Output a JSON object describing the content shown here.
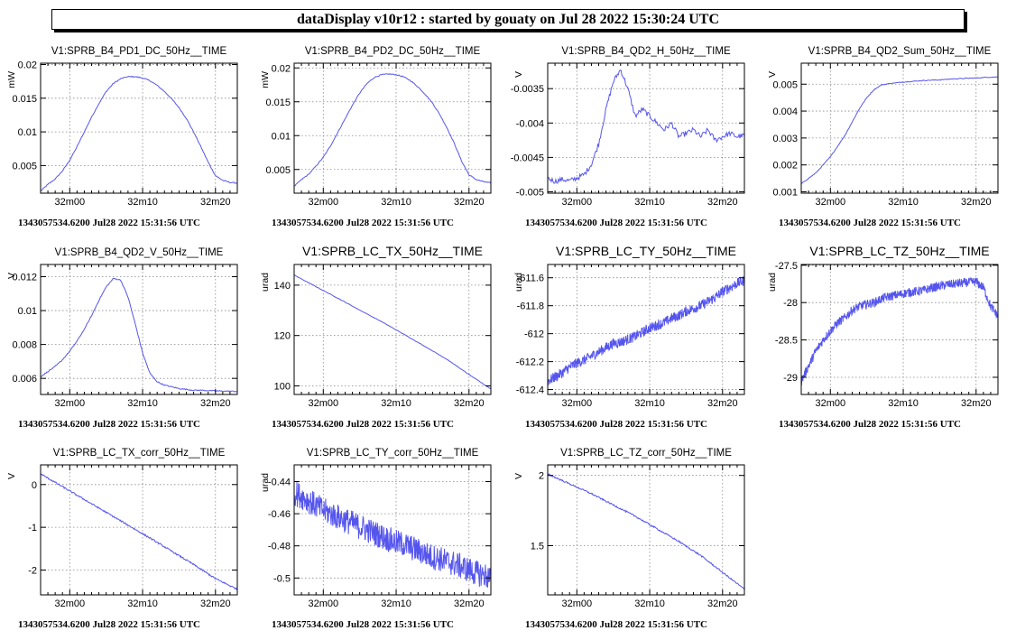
{
  "header": {
    "title": "dataDisplay v10r12 : started by gouaty on Jul 28 2022 15:30:24 UTC"
  },
  "style": {
    "line_color": "#5555ee",
    "grid_color": "#888888",
    "frame_color": "#000000"
  },
  "chart_data": [
    {
      "type": "line",
      "title": "V1:SPRB_B4_PD1_DC_50Hz__TIME",
      "ylabel": "mW",
      "ylim": [
        0.0009,
        0.0202
      ],
      "yticks": [
        0.005,
        0.01,
        0.015,
        0.02
      ],
      "ytick_labels": [
        "0.005",
        "0.01",
        "0.015",
        "0.02"
      ],
      "xlim": [
        0,
        27
      ],
      "xticks": [
        4,
        14,
        24
      ],
      "xtick_labels": [
        "32m00",
        "32m10",
        "32m20"
      ],
      "grid": true,
      "x": [
        0,
        1,
        2,
        3,
        4,
        5,
        6,
        7,
        8,
        9,
        10,
        11,
        12,
        13,
        14,
        15,
        16,
        17,
        18,
        19,
        20,
        21,
        22,
        23,
        24,
        25,
        26,
        27
      ],
      "series": [
        {
          "values": [
            0.0012,
            0.0022,
            0.003,
            0.0042,
            0.0058,
            0.0078,
            0.01,
            0.0122,
            0.0142,
            0.016,
            0.0172,
            0.0179,
            0.0182,
            0.0182,
            0.018,
            0.0176,
            0.0169,
            0.016,
            0.0149,
            0.0136,
            0.012,
            0.01,
            0.0078,
            0.0055,
            0.0035,
            0.0028,
            0.0025,
            0.0024
          ]
        }
      ],
      "footer": "1343057534.6200 Jul28 2022 15:31:56 UTC"
    },
    {
      "type": "line",
      "title": "V1:SPRB_B4_PD2_DC_50Hz__TIME",
      "ylabel": "mW",
      "ylim": [
        0.0015,
        0.0207
      ],
      "yticks": [
        0.005,
        0.01,
        0.015,
        0.02
      ],
      "ytick_labels": [
        "0.005",
        "0.01",
        "0.015",
        "0.02"
      ],
      "xlim": [
        0,
        27
      ],
      "xticks": [
        4,
        14,
        24
      ],
      "xtick_labels": [
        "32m00",
        "32m10",
        "32m20"
      ],
      "grid": true,
      "x": [
        0,
        1,
        2,
        3,
        4,
        5,
        6,
        7,
        8,
        9,
        10,
        11,
        12,
        13,
        14,
        15,
        16,
        17,
        18,
        19,
        20,
        21,
        22,
        23,
        24,
        25,
        26,
        27
      ],
      "series": [
        {
          "values": [
            0.0025,
            0.0035,
            0.0043,
            0.0055,
            0.0068,
            0.0085,
            0.0105,
            0.0125,
            0.0145,
            0.0163,
            0.0177,
            0.0186,
            0.019,
            0.0191,
            0.019,
            0.0187,
            0.0181,
            0.0172,
            0.0161,
            0.0148,
            0.0131,
            0.0111,
            0.0088,
            0.0062,
            0.0042,
            0.0035,
            0.0032,
            0.003
          ]
        }
      ],
      "footer": "1343057534.6200 Jul28 2022 15:31:56 UTC"
    },
    {
      "type": "line",
      "title": "V1:SPRB_B4_QD2_H_50Hz__TIME",
      "ylabel": "V",
      "ylim": [
        -0.00502,
        -0.00313
      ],
      "yticks": [
        -0.005,
        -0.0045,
        -0.004,
        -0.0035
      ],
      "ytick_labels": [
        "-0.005",
        "-0.0045",
        "-0.004",
        "-0.0035"
      ],
      "xlim": [
        0,
        27
      ],
      "xticks": [
        4,
        14,
        24
      ],
      "xtick_labels": [
        "32m00",
        "32m10",
        "32m20"
      ],
      "grid": true,
      "x": [
        0,
        1,
        2,
        3,
        4,
        5,
        6,
        7,
        8,
        9,
        10,
        11,
        12,
        13,
        14,
        15,
        16,
        17,
        18,
        19,
        20,
        21,
        22,
        23,
        24,
        25,
        26,
        27
      ],
      "series": [
        {
          "values": [
            -0.0048,
            -0.00485,
            -0.00482,
            -0.00484,
            -0.0048,
            -0.00475,
            -0.0046,
            -0.0043,
            -0.0038,
            -0.0034,
            -0.00322,
            -0.0035,
            -0.0039,
            -0.0038,
            -0.0039,
            -0.004,
            -0.0041,
            -0.004,
            -0.0042,
            -0.00415,
            -0.0041,
            -0.0042,
            -0.0041,
            -0.00425,
            -0.0042,
            -0.00415,
            -0.0042,
            -0.00418
          ]
        }
      ],
      "footer": "1343057534.6200 Jul28 2022 15:31:56 UTC"
    },
    {
      "type": "line",
      "title": "V1:SPRB_B4_QD2_Sum_50Hz__TIME",
      "ylabel": "V",
      "ylim": [
        0.00095,
        0.00578
      ],
      "yticks": [
        0.001,
        0.002,
        0.003,
        0.004,
        0.005
      ],
      "ytick_labels": [
        "0.001",
        "0.002",
        "0.003",
        "0.004",
        "0.005"
      ],
      "xlim": [
        0,
        27
      ],
      "xticks": [
        4,
        14,
        24
      ],
      "xtick_labels": [
        "32m00",
        "32m10",
        "32m20"
      ],
      "grid": true,
      "x": [
        0,
        1,
        2,
        3,
        4,
        5,
        6,
        7,
        8,
        9,
        10,
        11,
        12,
        13,
        14,
        15,
        16,
        17,
        18,
        19,
        20,
        21,
        22,
        23,
        24,
        25,
        26,
        27
      ],
      "series": [
        {
          "values": [
            0.0013,
            0.0015,
            0.0017,
            0.002,
            0.0023,
            0.0027,
            0.0031,
            0.0036,
            0.0041,
            0.0045,
            0.0048,
            0.00497,
            0.00502,
            0.00505,
            0.00508,
            0.0051,
            0.00512,
            0.00514,
            0.00515,
            0.00516,
            0.00518,
            0.0052,
            0.00521,
            0.00522,
            0.00523,
            0.00525,
            0.00526,
            0.00527
          ]
        }
      ],
      "footer": "1343057534.6200 Jul28 2022 15:31:56 UTC"
    },
    {
      "type": "line",
      "title": "V1:SPRB_B4_QD2_V_50Hz__TIME",
      "ylabel": "V",
      "ylim": [
        0.00505,
        0.01272
      ],
      "yticks": [
        0.006,
        0.008,
        0.01,
        0.012
      ],
      "ytick_labels": [
        "0.006",
        "0.008",
        "0.01",
        "0.012"
      ],
      "xlim": [
        0,
        27
      ],
      "xticks": [
        4,
        14,
        24
      ],
      "xtick_labels": [
        "32m00",
        "32m10",
        "32m20"
      ],
      "grid": true,
      "x": [
        0,
        1,
        2,
        3,
        4,
        5,
        6,
        7,
        8,
        9,
        10,
        11,
        12,
        13,
        14,
        15,
        16,
        17,
        18,
        19,
        20,
        21,
        22,
        23,
        24,
        25,
        26,
        27
      ],
      "series": [
        {
          "values": [
            0.0061,
            0.0064,
            0.0067,
            0.0071,
            0.0076,
            0.0082,
            0.0089,
            0.0097,
            0.0106,
            0.0114,
            0.0119,
            0.0118,
            0.0108,
            0.0092,
            0.0075,
            0.0063,
            0.0058,
            0.0056,
            0.0055,
            0.0054,
            0.00535,
            0.0053,
            0.0053,
            0.00528,
            0.00526,
            0.00525,
            0.00524,
            0.00523
          ]
        }
      ],
      "footer": "1343057534.6200 Jul28 2022 15:31:56 UTC"
    },
    {
      "type": "line",
      "title": "V1:SPRB_LC_TX_50Hz__TIME",
      "ylabel": "urad",
      "ylim": [
        96.6,
        148.2
      ],
      "yticks": [
        100,
        120,
        140
      ],
      "ytick_labels": [
        "100",
        "120",
        "140"
      ],
      "xlim": [
        0,
        27
      ],
      "xticks": [
        4,
        14,
        24
      ],
      "xtick_labels": [
        "32m00",
        "32m10",
        "32m20"
      ],
      "grid": true,
      "x": [
        0,
        3,
        6,
        9,
        12,
        15,
        18,
        21,
        24,
        27
      ],
      "series": [
        {
          "values": [
            144,
            139.4,
            134.8,
            130.1,
            125.5,
            120.6,
            115.6,
            110.5,
            104.5,
            98.8
          ]
        }
      ],
      "footer": "1343057534.6200 Jul28 2022 15:31:56 UTC"
    },
    {
      "type": "line",
      "title": "V1:SPRB_LC_TY_50Hz__TIME",
      "ylabel": "urad",
      "ylim": [
        -612.435,
        -611.505
      ],
      "yticks": [
        -612.4,
        -612.2,
        -612,
        -611.8,
        -611.6
      ],
      "ytick_labels": [
        "-612.4",
        "-612.2",
        "-612",
        "-611.8",
        "-611.6"
      ],
      "xlim": [
        0,
        27
      ],
      "xticks": [
        4,
        14,
        24
      ],
      "xtick_labels": [
        "32m00",
        "32m10",
        "32m20"
      ],
      "grid": true,
      "x": [
        0,
        1,
        2,
        3,
        4,
        5,
        6,
        7,
        8,
        9,
        10,
        11,
        12,
        13,
        14,
        15,
        16,
        17,
        18,
        19,
        20,
        21,
        22,
        23,
        24,
        25,
        26,
        27
      ],
      "series": [
        {
          "values": [
            -612.34,
            -612.31,
            -612.28,
            -612.24,
            -612.21,
            -612.19,
            -612.16,
            -612.13,
            -612.1,
            -612.07,
            -612.06,
            -612.04,
            -612.02,
            -611.99,
            -611.96,
            -611.94,
            -611.92,
            -611.89,
            -611.87,
            -611.84,
            -611.82,
            -611.8,
            -611.77,
            -611.74,
            -611.7,
            -611.67,
            -611.64,
            -611.62
          ]
        }
      ],
      "footer": "1343057534.6200 Jul28 2022 15:31:56 UTC"
    },
    {
      "type": "line",
      "title": "V1:SPRB_LC_TZ_50Hz__TIME",
      "ylabel": "urad",
      "ylim": [
        -29.23,
        -27.49
      ],
      "yticks": [
        -29,
        -28.5,
        -28,
        -27.5
      ],
      "ytick_labels": [
        "-29",
        "-28.5",
        "-28",
        "-27.5"
      ],
      "xlim": [
        0,
        27
      ],
      "xticks": [
        4,
        14,
        24
      ],
      "xtick_labels": [
        "32m00",
        "32m10",
        "32m20"
      ],
      "grid": true,
      "x": [
        0,
        1,
        2,
        3,
        4,
        5,
        6,
        7,
        8,
        9,
        10,
        11,
        12,
        13,
        14,
        15,
        16,
        17,
        18,
        19,
        20,
        21,
        22,
        23,
        24,
        25,
        26,
        27
      ],
      "series": [
        {
          "values": [
            -29.05,
            -28.85,
            -28.65,
            -28.5,
            -28.38,
            -28.27,
            -28.2,
            -28.1,
            -28.05,
            -28.02,
            -28.0,
            -27.95,
            -27.92,
            -27.9,
            -27.88,
            -27.86,
            -27.85,
            -27.83,
            -27.8,
            -27.78,
            -27.76,
            -27.75,
            -27.74,
            -27.73,
            -27.72,
            -27.8,
            -28.05,
            -28.18
          ]
        }
      ],
      "footer": "1343057534.6200 Jul28 2022 15:31:56 UTC"
    },
    {
      "type": "line",
      "title": "V1:SPRB_LC_TX_corr_50Hz__TIME",
      "ylabel": "V",
      "ylim": [
        -2.58,
        0.46
      ],
      "yticks": [
        -2,
        -1,
        0
      ],
      "ytick_labels": [
        "-2",
        "-1",
        "0"
      ],
      "xlim": [
        0,
        27
      ],
      "xticks": [
        4,
        14,
        24
      ],
      "xtick_labels": [
        "32m00",
        "32m10",
        "32m20"
      ],
      "grid": true,
      "x": [
        0,
        3,
        6,
        9,
        12,
        15,
        18,
        21,
        24,
        27
      ],
      "series": [
        {
          "values": [
            0.25,
            -0.05,
            -0.35,
            -0.65,
            -0.95,
            -1.25,
            -1.56,
            -1.87,
            -2.2,
            -2.45
          ]
        }
      ],
      "footer": "1343057534.6200 Jul28 2022 15:31:56 UTC"
    },
    {
      "type": "line",
      "title": "V1:SPRB_LC_TY_corr_50Hz__TIME",
      "ylabel": "urad",
      "ylim": [
        -0.5105,
        -0.4296
      ],
      "yticks": [
        -0.5,
        -0.48,
        -0.46,
        -0.44
      ],
      "ytick_labels": [
        "-0.5",
        "-0.48",
        "-0.46",
        "-0.44"
      ],
      "xlim": [
        0,
        27
      ],
      "xticks": [
        4,
        14,
        24
      ],
      "xtick_labels": [
        "32m00",
        "32m10",
        "32m20"
      ],
      "grid": true,
      "x": [
        0,
        1,
        2,
        3,
        4,
        5,
        6,
        7,
        8,
        9,
        10,
        11,
        12,
        13,
        14,
        15,
        16,
        17,
        18,
        19,
        20,
        21,
        22,
        23,
        24,
        25,
        26,
        27
      ],
      "series": [
        {
          "values": [
            -0.447,
            -0.449,
            -0.452,
            -0.455,
            -0.458,
            -0.46,
            -0.462,
            -0.464,
            -0.466,
            -0.468,
            -0.47,
            -0.472,
            -0.474,
            -0.476,
            -0.478,
            -0.479,
            -0.481,
            -0.483,
            -0.485,
            -0.487,
            -0.488,
            -0.49,
            -0.491,
            -0.493,
            -0.495,
            -0.497,
            -0.498,
            -0.5
          ]
        }
      ],
      "footer": "1343057534.6200 Jul28 2022 15:31:56 UTC"
    },
    {
      "type": "line",
      "title": "V1:SPRB_LC_TZ_corr_50Hz__TIME",
      "ylabel": "V",
      "ylim": [
        1.15,
        2.075
      ],
      "yticks": [
        1.5,
        2
      ],
      "ytick_labels": [
        "1.5",
        "2"
      ],
      "xlim": [
        0,
        27
      ],
      "xticks": [
        4,
        14,
        24
      ],
      "xtick_labels": [
        "32m00",
        "32m10",
        "32m20"
      ],
      "grid": true,
      "x": [
        0,
        3,
        6,
        9,
        12,
        15,
        18,
        21,
        24,
        27
      ],
      "series": [
        {
          "values": [
            2.01,
            1.94,
            1.87,
            1.79,
            1.71,
            1.62,
            1.53,
            1.43,
            1.31,
            1.19
          ]
        }
      ],
      "footer": "1343057534.6200 Jul28 2022 15:31:56 UTC"
    }
  ]
}
